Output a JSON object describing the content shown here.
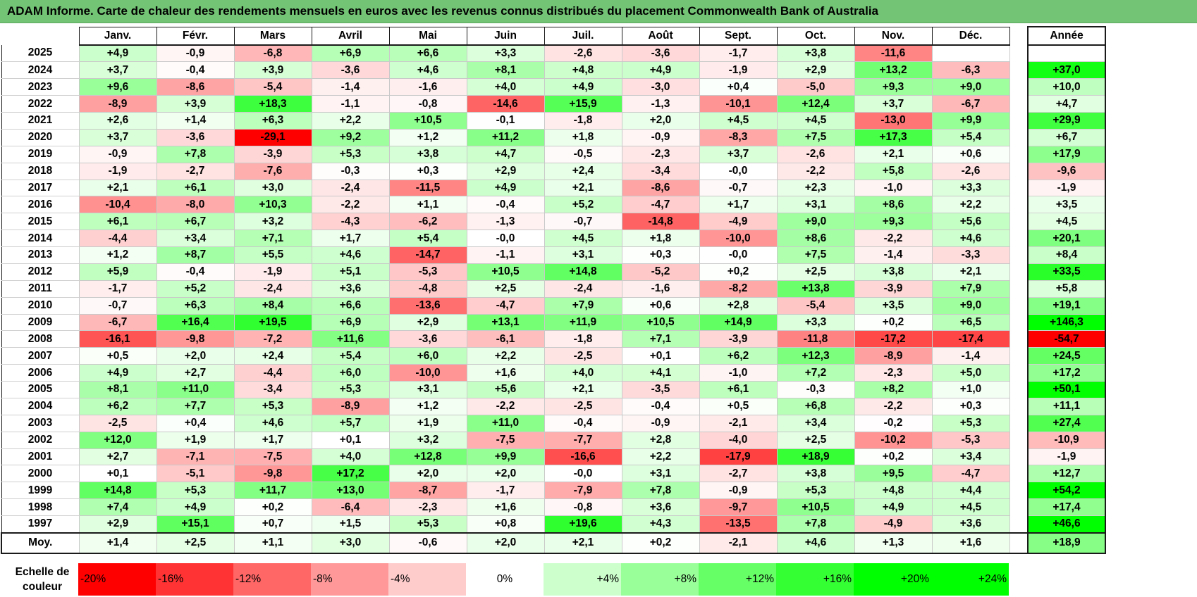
{
  "title": "ADAM Informe. Carte de chaleur des rendements mensuels en euros avec les revenus connus distribués du placement Commonwealth Bank of Australia",
  "colors": {
    "title_bg": "#74c476",
    "strong_red": "#ff0000",
    "strong_green": "#00ff00",
    "neutral": "#ffffff"
  },
  "chart_data": {
    "type": "heatmap",
    "title": "ADAM Informe. Carte de chaleur des rendements mensuels en euros avec les revenus connus distribués du placement Commonwealth Bank of Australia",
    "columns": [
      "Janv.",
      "Févr.",
      "Mars",
      "Avril",
      "Mai",
      "Juin",
      "Juil.",
      "Août",
      "Sept.",
      "Oct.",
      "Nov.",
      "Déc."
    ],
    "annual_header": "Année",
    "rows": [
      {
        "year": "2025",
        "values": [
          "+4,9",
          "-0,9",
          "-6,8",
          "+6,9",
          "+6,6",
          "+3,3",
          "-2,6",
          "-3,6",
          "-1,7",
          "+3,8",
          "-11,6",
          ""
        ],
        "annual": ""
      },
      {
        "year": "2024",
        "values": [
          "+3,7",
          "-0,4",
          "+3,9",
          "-3,6",
          "+4,6",
          "+8,1",
          "+4,8",
          "+4,9",
          "-1,9",
          "+2,9",
          "+13,2",
          "-6,3"
        ],
        "annual": "+37,0"
      },
      {
        "year": "2023",
        "values": [
          "+9,6",
          "-8,6",
          "-5,4",
          "-1,4",
          "-1,6",
          "+4,0",
          "+4,9",
          "-3,0",
          "+0,4",
          "-5,0",
          "+9,3",
          "+9,0"
        ],
        "annual": "+10,0"
      },
      {
        "year": "2022",
        "values": [
          "-8,9",
          "+3,9",
          "+18,3",
          "-1,1",
          "-0,8",
          "-14,6",
          "+15,9",
          "-1,3",
          "-10,1",
          "+12,4",
          "+3,7",
          "-6,7"
        ],
        "annual": "+4,7"
      },
      {
        "year": "2021",
        "values": [
          "+2,6",
          "+1,4",
          "+6,3",
          "+2,2",
          "+10,5",
          "-0,1",
          "-1,8",
          "+2,0",
          "+4,5",
          "+4,5",
          "-13,0",
          "+9,9"
        ],
        "annual": "+29,9"
      },
      {
        "year": "2020",
        "values": [
          "+3,7",
          "-3,6",
          "-29,1",
          "+9,2",
          "+1,2",
          "+11,2",
          "+1,8",
          "-0,9",
          "-8,3",
          "+7,5",
          "+17,3",
          "+5,4"
        ],
        "annual": "+6,7"
      },
      {
        "year": "2019",
        "values": [
          "-0,9",
          "+7,8",
          "-3,9",
          "+5,3",
          "+3,8",
          "+4,7",
          "-0,5",
          "-2,3",
          "+3,7",
          "-2,6",
          "+2,1",
          "+0,6"
        ],
        "annual": "+17,9"
      },
      {
        "year": "2018",
        "values": [
          "-1,9",
          "-2,7",
          "-7,6",
          "-0,3",
          "+0,3",
          "+2,9",
          "+2,4",
          "-3,4",
          "-0,0",
          "-2,2",
          "+5,8",
          "-2,6"
        ],
        "annual": "-9,6"
      },
      {
        "year": "2017",
        "values": [
          "+2,1",
          "+6,1",
          "+3,0",
          "-2,4",
          "-11,5",
          "+4,9",
          "+2,1",
          "-8,6",
          "-0,7",
          "+2,3",
          "-1,0",
          "+3,3"
        ],
        "annual": "-1,9"
      },
      {
        "year": "2016",
        "values": [
          "-10,4",
          "-8,0",
          "+10,3",
          "-2,2",
          "+1,1",
          "-0,4",
          "+5,2",
          "-4,7",
          "+1,7",
          "+3,1",
          "+8,6",
          "+2,2"
        ],
        "annual": "+3,5"
      },
      {
        "year": "2015",
        "values": [
          "+6,1",
          "+6,7",
          "+3,2",
          "-4,3",
          "-6,2",
          "-1,3",
          "-0,7",
          "-14,8",
          "-4,9",
          "+9,0",
          "+9,3",
          "+5,6"
        ],
        "annual": "+4,5"
      },
      {
        "year": "2014",
        "values": [
          "-4,4",
          "+3,4",
          "+7,1",
          "+1,7",
          "+5,4",
          "-0,0",
          "+4,5",
          "+1,8",
          "-10,0",
          "+8,6",
          "-2,2",
          "+4,6"
        ],
        "annual": "+20,1"
      },
      {
        "year": "2013",
        "values": [
          "+1,2",
          "+8,7",
          "+5,5",
          "+4,6",
          "-14,7",
          "-1,1",
          "+3,1",
          "+0,3",
          "-0,0",
          "+7,5",
          "-1,4",
          "-3,3"
        ],
        "annual": "+8,4"
      },
      {
        "year": "2012",
        "values": [
          "+5,9",
          "-0,4",
          "-1,9",
          "+5,1",
          "-5,3",
          "+10,5",
          "+14,8",
          "-5,2",
          "+0,2",
          "+2,5",
          "+3,8",
          "+2,1"
        ],
        "annual": "+33,5"
      },
      {
        "year": "2011",
        "values": [
          "-1,7",
          "+5,2",
          "-2,4",
          "+3,6",
          "-4,8",
          "+2,5",
          "-2,4",
          "-1,6",
          "-8,2",
          "+13,8",
          "-3,9",
          "+7,9"
        ],
        "annual": "+5,8"
      },
      {
        "year": "2010",
        "values": [
          "-0,7",
          "+6,3",
          "+8,4",
          "+6,6",
          "-13,6",
          "-4,7",
          "+7,9",
          "+0,6",
          "+2,8",
          "-5,4",
          "+3,5",
          "+9,0"
        ],
        "annual": "+19,1"
      },
      {
        "year": "2009",
        "values": [
          "-6,7",
          "+16,4",
          "+19,5",
          "+6,9",
          "+2,9",
          "+13,1",
          "+11,9",
          "+10,5",
          "+14,9",
          "+3,3",
          "+0,2",
          "+6,5"
        ],
        "annual": "+146,3"
      },
      {
        "year": "2008",
        "values": [
          "-16,1",
          "-9,8",
          "-7,2",
          "+11,6",
          "-3,6",
          "-6,1",
          "-1,8",
          "+7,1",
          "-3,9",
          "-11,8",
          "-17,2",
          "-17,4"
        ],
        "annual": "-54,7"
      },
      {
        "year": "2007",
        "values": [
          "+0,5",
          "+2,0",
          "+2,4",
          "+5,4",
          "+6,0",
          "+2,2",
          "-2,5",
          "+0,1",
          "+6,2",
          "+12,3",
          "-8,9",
          "-1,4"
        ],
        "annual": "+24,5"
      },
      {
        "year": "2006",
        "values": [
          "+4,9",
          "+2,7",
          "-4,4",
          "+6,0",
          "-10,0",
          "+1,6",
          "+4,0",
          "+4,1",
          "-1,0",
          "+7,2",
          "-2,3",
          "+5,0"
        ],
        "annual": "+17,2"
      },
      {
        "year": "2005",
        "values": [
          "+8,1",
          "+11,0",
          "-3,4",
          "+5,3",
          "+3,1",
          "+5,6",
          "+2,1",
          "-3,5",
          "+6,1",
          "-0,3",
          "+8,2",
          "+1,0"
        ],
        "annual": "+50,1"
      },
      {
        "year": "2004",
        "values": [
          "+6,2",
          "+7,7",
          "+5,3",
          "-8,9",
          "+1,2",
          "-2,2",
          "-2,5",
          "-0,4",
          "+0,5",
          "+6,8",
          "-2,2",
          "+0,3"
        ],
        "annual": "+11,1"
      },
      {
        "year": "2003",
        "values": [
          "-2,5",
          "+0,4",
          "+4,6",
          "+5,7",
          "+1,9",
          "+11,0",
          "-0,4",
          "-0,9",
          "-2,1",
          "+3,4",
          "-0,2",
          "+5,3"
        ],
        "annual": "+27,4"
      },
      {
        "year": "2002",
        "values": [
          "+12,0",
          "+1,9",
          "+1,7",
          "+0,1",
          "+3,2",
          "-7,5",
          "-7,7",
          "+2,8",
          "-4,0",
          "+2,5",
          "-10,2",
          "-5,3"
        ],
        "annual": "-10,9"
      },
      {
        "year": "2001",
        "values": [
          "+2,7",
          "-7,1",
          "-7,5",
          "+4,0",
          "+12,8",
          "+9,9",
          "-16,6",
          "+2,2",
          "-17,9",
          "+18,9",
          "+0,2",
          "+3,4"
        ],
        "annual": "-1,9"
      },
      {
        "year": "2000",
        "values": [
          "+0,1",
          "-5,1",
          "-9,8",
          "+17,2",
          "+2,0",
          "+2,0",
          "-0,0",
          "+3,1",
          "-2,7",
          "+3,8",
          "+9,5",
          "-4,7"
        ],
        "annual": "+12,7"
      },
      {
        "year": "1999",
        "values": [
          "+14,8",
          "+5,3",
          "+11,7",
          "+13,0",
          "-8,7",
          "-1,7",
          "-7,9",
          "+7,8",
          "-0,9",
          "+5,3",
          "+4,8",
          "+4,4"
        ],
        "annual": "+54,2"
      },
      {
        "year": "1998",
        "values": [
          "+7,4",
          "+4,9",
          "+0,2",
          "-6,4",
          "-2,3",
          "+1,6",
          "-0,8",
          "+3,6",
          "-9,7",
          "+10,5",
          "+4,9",
          "+4,5"
        ],
        "annual": "+17,4"
      },
      {
        "year": "1997",
        "values": [
          "+2,9",
          "+15,1",
          "+0,7",
          "+1,5",
          "+5,3",
          "+0,8",
          "+19,6",
          "+4,3",
          "-13,5",
          "+7,8",
          "-4,9",
          "+3,6"
        ],
        "annual": "+46,6"
      }
    ],
    "average": {
      "label": "Moy.",
      "values": [
        "+1,4",
        "+2,5",
        "+1,1",
        "+3,0",
        "-0,6",
        "+2,0",
        "+2,1",
        "+0,2",
        "-2,1",
        "+4,6",
        "+1,3",
        "+1,6"
      ],
      "annual": "+18,9"
    },
    "color_scale": {
      "label": "Echelle de couleur",
      "stops": [
        "-20%",
        "-16%",
        "-12%",
        "-8%",
        "-4%",
        "0%",
        "+4%",
        "+8%",
        "+12%",
        "+16%",
        "+20%",
        "+24%"
      ],
      "stop_values": [
        -20,
        -16,
        -12,
        -8,
        -4,
        0,
        4,
        8,
        12,
        16,
        20,
        24
      ]
    }
  }
}
